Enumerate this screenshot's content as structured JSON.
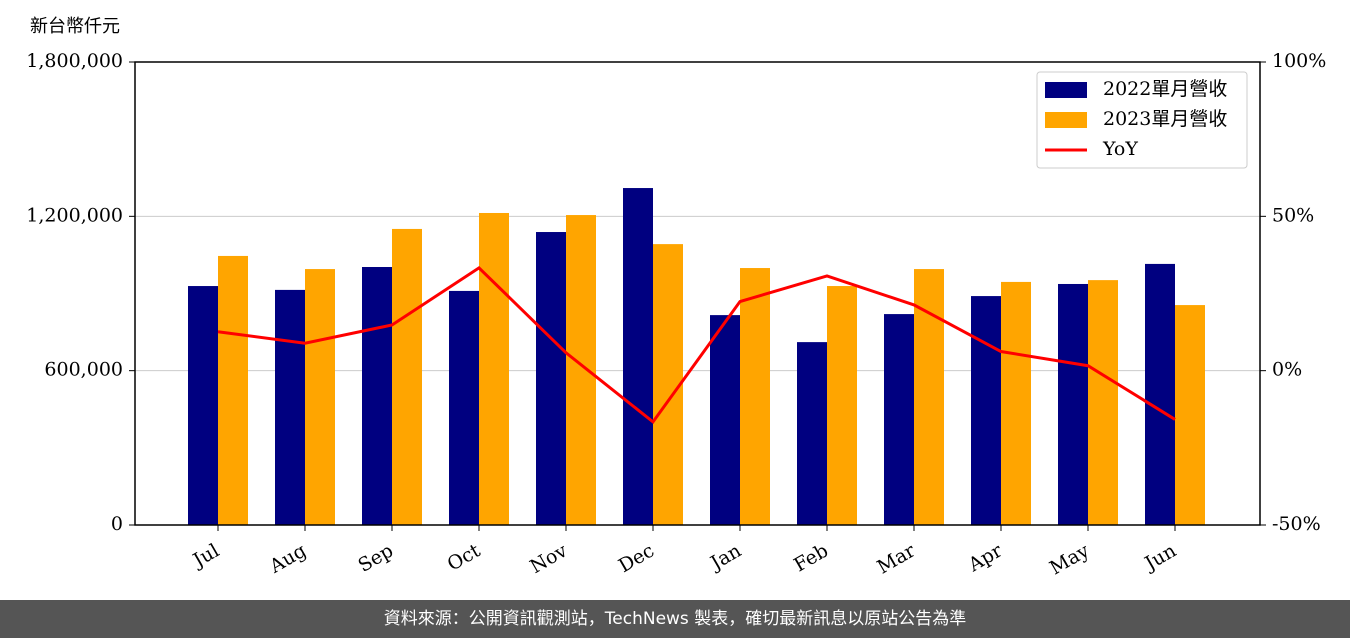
{
  "chart_data": {
    "type": "bar",
    "y_label": "新台幣仟元",
    "categories": [
      "Jul",
      "Aug",
      "Sep",
      "Oct",
      "Nov",
      "Dec",
      "Jan",
      "Feb",
      "Mar",
      "Apr",
      "May",
      "Jun"
    ],
    "series": [
      {
        "name": "2022單月營收",
        "color": "#000080",
        "values": [
          929000,
          914000,
          1003000,
          910000,
          1139000,
          1310000,
          816000,
          711000,
          820000,
          890000,
          937000,
          1015000
        ]
      },
      {
        "name": "2023單月營收",
        "color": "#ffa500",
        "values": [
          1046000,
          995000,
          1151000,
          1213000,
          1205000,
          1092000,
          999000,
          929000,
          995000,
          945000,
          952000,
          855000
        ]
      },
      {
        "name": "YoY",
        "type": "line",
        "axis": "y2",
        "color": "#ff0000",
        "values": [
          12.6,
          8.9,
          14.8,
          33.3,
          5.8,
          -16.6,
          22.4,
          30.7,
          21.3,
          6.2,
          1.6,
          -15.8
        ]
      }
    ],
    "ylim": [
      0,
      1800000
    ],
    "yticks": [
      0,
      {
        "value": 600000,
        "label": "600,000"
      },
      {
        "value": 1200000,
        "label": "1,200,000"
      },
      {
        "value": 1800000,
        "label": "1,800,000"
      }
    ],
    "y2lim": [
      -50,
      100
    ],
    "y2ticks": [
      {
        "value": -50,
        "label": "-50%"
      },
      {
        "value": 0,
        "label": "0%"
      },
      {
        "value": 50,
        "label": "50%"
      },
      {
        "value": 100,
        "label": "100%"
      }
    ],
    "grid": true,
    "legend": "upper-right"
  },
  "footer": "資料來源：公開資訊觀測站，TechNews 製表，確切最新訊息以原站公告為準"
}
